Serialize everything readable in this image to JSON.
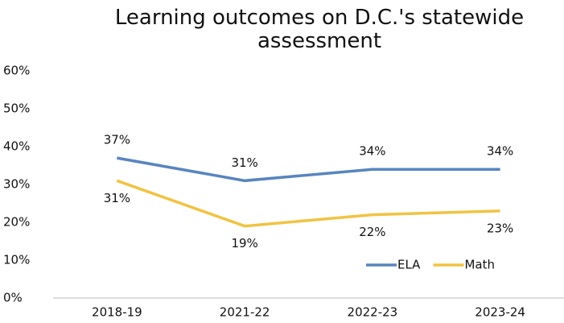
{
  "chart_data": {
    "type": "line",
    "title": "Learning outcomes on D.C.'s statewide assessment",
    "categories": [
      "2018-19",
      "2021-22",
      "2022-23",
      "2023-24"
    ],
    "series": [
      {
        "name": "ELA",
        "color": "#5885bf",
        "values": [
          37,
          31,
          34,
          34
        ],
        "value_labels": [
          "37%",
          "31%",
          "34%",
          "34%"
        ]
      },
      {
        "name": "Math",
        "color": "#f2c342",
        "values": [
          31,
          19,
          22,
          23
        ],
        "value_labels": [
          "31%",
          "19%",
          "22%",
          "23%"
        ]
      }
    ],
    "ylim": [
      0,
      60
    ],
    "yticks": [
      {
        "value": 0,
        "label": "0%"
      },
      {
        "value": 10,
        "label": "10%"
      },
      {
        "value": 20,
        "label": "20%"
      },
      {
        "value": 30,
        "label": "30%"
      },
      {
        "value": 40,
        "label": "40%"
      },
      {
        "value": 50,
        "label": "50%"
      },
      {
        "value": 60,
        "label": "60%"
      }
    ],
    "grid": false,
    "legend": "lower right"
  }
}
